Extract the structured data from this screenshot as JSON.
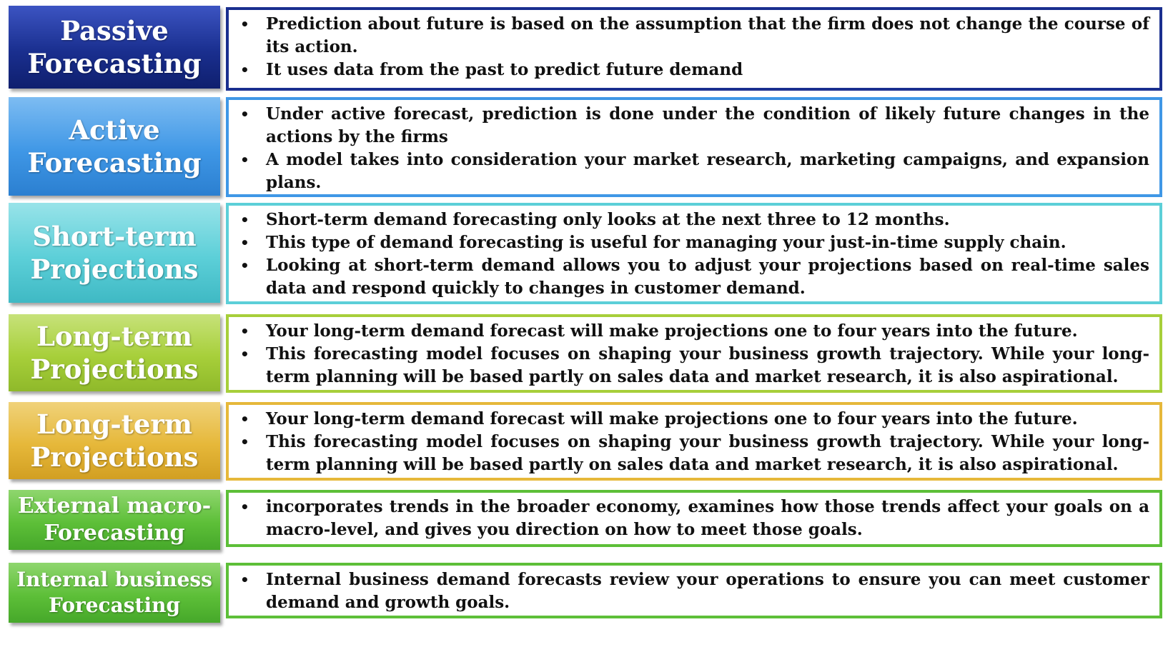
{
  "rows": [
    {
      "label_lines": [
        "Passive",
        "Forecasting"
      ],
      "color": "#1a2f8f",
      "items": [
        "Prediction about future is based on the assumption that the firm does not change the course of its action.",
        "It uses data from the past to predict future demand"
      ]
    },
    {
      "label_lines": [
        "Active",
        "Forecasting"
      ],
      "color": "#3f97e6",
      "items": [
        "Under active forecast, prediction is done under the condition of likely future changes in the actions by the firms",
        "A model takes into consideration your market research, marketing campaigns, and expansion plans."
      ]
    },
    {
      "label_lines": [
        "Short-term",
        "Projections"
      ],
      "color": "#5ccfd8",
      "items": [
        "Short-term demand forecasting only looks at the next three to 12 months.",
        "This type of demand forecasting is useful for managing your just-in-time supply chain.",
        "Looking at short-term demand allows you to adjust your projections based on real-time sales data and respond quickly to changes in customer demand."
      ]
    },
    {
      "label_lines": [
        "Long-term",
        "Projections"
      ],
      "color": "#a7cf3a",
      "items": [
        "Your long-term demand forecast will make projections one to four years into the future.",
        "This forecasting model focuses on shaping your business growth trajectory. While your long-term planning will be based partly on sales data and market research, it is also aspirational."
      ]
    },
    {
      "label_lines": [
        "Long-term",
        "Projections"
      ],
      "color": "#e6b83a",
      "items": [
        "Your long-term demand forecast will make projections one to four years into the future.",
        "This forecasting model focuses on shaping your business growth trajectory. While your long-term planning will be based partly on sales data and market research, it is also aspirational."
      ]
    },
    {
      "label_lines": [
        "External macro-",
        "Forecasting"
      ],
      "color": "#5dbf38",
      "items": [
        "incorporates trends in the broader economy, examines how those trends affect your goals on a macro-level, and gives you direction on how to meet those goals."
      ]
    },
    {
      "label_lines": [
        "Internal business",
        "Forecasting"
      ],
      "color": "#5dbf38",
      "items": [
        "Internal business demand forecasts review your operations to ensure you can meet customer demand and growth goals."
      ]
    }
  ]
}
